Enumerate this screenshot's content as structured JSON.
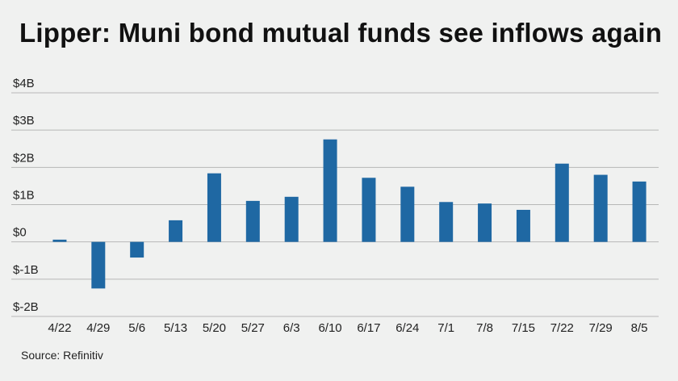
{
  "title": "Lipper: Muni bond mutual funds see inflows again",
  "source": "Source: Refinitiv",
  "colors": {
    "bar": "#1f68a3",
    "grid": "#b7b7b7",
    "background": "#f0f1f0"
  },
  "chart_data": {
    "type": "bar",
    "title": "Lipper: Muni bond mutual funds see inflows again",
    "categories": [
      "4/22",
      "4/29",
      "5/6",
      "5/13",
      "5/20",
      "5/27",
      "6/3",
      "6/10",
      "6/17",
      "6/24",
      "7/1",
      "7/8",
      "7/15",
      "7/22",
      "7/29",
      "8/5"
    ],
    "values": [
      0.06,
      -1.25,
      -0.42,
      0.58,
      1.84,
      1.1,
      1.21,
      2.75,
      1.72,
      1.48,
      1.07,
      1.03,
      0.86,
      2.1,
      1.8,
      1.62
    ],
    "unit": "billions USD",
    "ylim": [
      -2,
      4
    ],
    "yticks": [
      4,
      3,
      2,
      1,
      0,
      -1,
      -2
    ],
    "ytick_labels": [
      "$4B",
      "$3B",
      "$2B",
      "$1B",
      "$0",
      "$-1B",
      "$-2B"
    ],
    "xlabel": "",
    "ylabel": "",
    "grid": true
  }
}
